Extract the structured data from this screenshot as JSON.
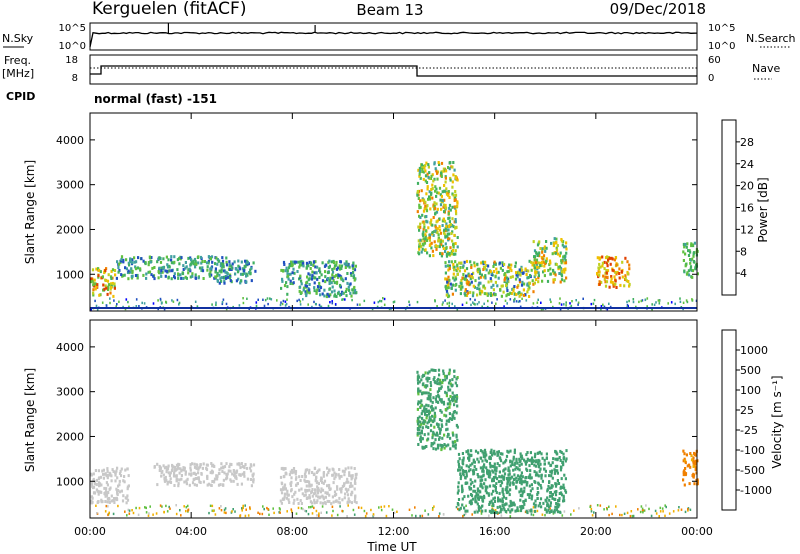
{
  "header": {
    "station": "Kerguelen (fitACF)",
    "beam": "Beam 13",
    "date": "09/Dec/2018"
  },
  "nsky_panel": {
    "left_label": "N.Sky",
    "right_label": "N.Search",
    "ticks_left": [
      "10^5",
      "10^0"
    ],
    "ticks_right": [
      "10^5",
      "10^0"
    ]
  },
  "freq_panel": {
    "left_label_1": "Freq.",
    "left_label_2": "[MHz]",
    "right_label": "Nave",
    "ticks_left": [
      "18",
      "8"
    ],
    "ticks_right": [
      "60",
      "0"
    ],
    "cpid_label": "CPID",
    "cpid_value": "normal (fast) -151"
  },
  "colors": {
    "power": [
      "#0000ff",
      "#2050c0",
      "#40a0a0",
      "#40b060",
      "#60c040",
      "#c0d020",
      "#f0c000",
      "#f08000",
      "#e04000",
      "#ff0000"
    ],
    "velocity": [
      "#ff0000",
      "#f04020",
      "#f08000",
      "#f0b000",
      "#c8c8c8",
      "#c8c8c8",
      "#60c040",
      "#40a070",
      "#4070b0",
      "#2040c0"
    ]
  },
  "chart_data": [
    {
      "type": "heatmap",
      "title": "Power",
      "xlabel": "",
      "ylabel": "Slant Range [km]",
      "xlim": [
        "00:00",
        "24:00"
      ],
      "ylim": [
        180,
        4600
      ],
      "yticks": [
        "1000",
        "2000",
        "3000",
        "4000"
      ],
      "colorbar_label": "Power [dB]",
      "colorbar_ticks": [
        "4",
        "8",
        "12",
        "16",
        "20",
        "24",
        "28"
      ],
      "echo_regions": [
        {
          "t": [
            0.0,
            1.0
          ],
          "range": [
            500,
            1150
          ],
          "power_db": [
            12,
            28
          ]
        },
        {
          "t": [
            1.0,
            5.5
          ],
          "range": [
            900,
            1400
          ],
          "power_db": [
            4,
            16
          ]
        },
        {
          "t": [
            5.0,
            6.5
          ],
          "range": [
            800,
            1300
          ],
          "power_db": [
            4,
            12
          ]
        },
        {
          "t": [
            7.5,
            10.5
          ],
          "range": [
            500,
            1300
          ],
          "power_db": [
            4,
            16
          ]
        },
        {
          "t": [
            12.9,
            14.5
          ],
          "range": [
            1400,
            3500
          ],
          "power_db": [
            8,
            24
          ]
        },
        {
          "t": [
            14.0,
            17.5
          ],
          "range": [
            500,
            1300
          ],
          "power_db": [
            4,
            24
          ]
        },
        {
          "t": [
            17.5,
            18.8
          ],
          "range": [
            800,
            1800
          ],
          "power_db": [
            8,
            24
          ]
        },
        {
          "t": [
            20.0,
            21.3
          ],
          "range": [
            700,
            1400
          ],
          "power_db": [
            16,
            28
          ]
        },
        {
          "t": [
            23.4,
            24.0
          ],
          "range": [
            900,
            1700
          ],
          "power_db": [
            8,
            16
          ]
        }
      ]
    },
    {
      "type": "heatmap",
      "title": "Velocity",
      "xlabel": "Time UT",
      "ylabel": "Slant Range [km]",
      "xlim": [
        "00:00",
        "24:00"
      ],
      "ylim": [
        180,
        4600
      ],
      "xticks": [
        "00:00",
        "04:00",
        "08:00",
        "12:00",
        "16:00",
        "20:00",
        "00:00"
      ],
      "yticks": [
        "1000",
        "2000",
        "3000",
        "4000"
      ],
      "colorbar_label": "Velocity [m s⁻¹]",
      "colorbar_ticks": [
        "1000",
        "500",
        "100",
        "25",
        "-25",
        "-100",
        "-500",
        "-1000"
      ],
      "echo_regions": [
        {
          "t": [
            0.0,
            1.5
          ],
          "range": [
            500,
            1300
          ],
          "velocity": [
            -25,
            25
          ]
        },
        {
          "t": [
            2.5,
            6.5
          ],
          "range": [
            900,
            1400
          ],
          "velocity": [
            -25,
            25
          ]
        },
        {
          "t": [
            7.5,
            10.5
          ],
          "range": [
            500,
            1300
          ],
          "velocity": [
            -25,
            25
          ]
        },
        {
          "t": [
            12.9,
            14.5
          ],
          "range": [
            1700,
            3500
          ],
          "velocity": [
            25,
            500
          ]
        },
        {
          "t": [
            14.5,
            18.8
          ],
          "range": [
            300,
            1700
          ],
          "velocity": [
            100,
            500
          ]
        },
        {
          "t": [
            23.4,
            24.0
          ],
          "range": [
            900,
            1700
          ],
          "velocity": [
            -500,
            -25
          ]
        }
      ]
    }
  ]
}
